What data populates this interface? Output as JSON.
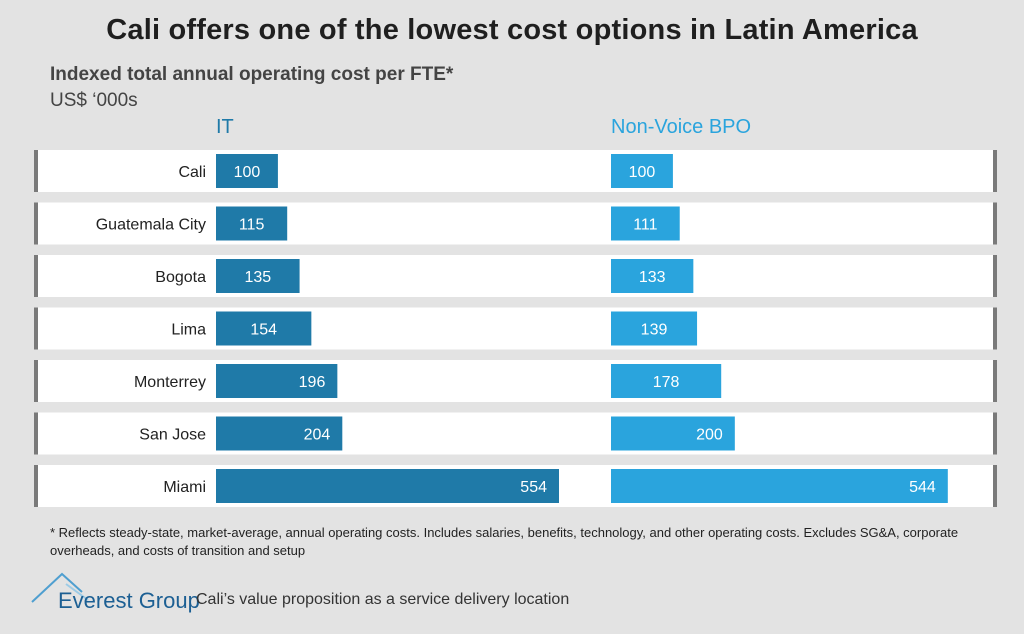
{
  "title": "Cali offers one of the lowest cost options in Latin America",
  "chart_data": {
    "type": "bar",
    "orientation": "horizontal",
    "title": "Indexed total annual operating cost per FTE*",
    "unit_label": "US$ ‘000s",
    "categories": [
      "Cali",
      "Guatemala City",
      "Bogota",
      "Lima",
      "Monterrey",
      "San Jose",
      "Miami"
    ],
    "series": [
      {
        "name": "IT",
        "color": "#1f7aa8",
        "values": [
          100,
          115,
          135,
          154,
          196,
          204,
          554
        ]
      },
      {
        "name": "Non-Voice BPO",
        "color": "#2aa4dd",
        "values": [
          100,
          111,
          133,
          139,
          178,
          200,
          544
        ]
      }
    ],
    "xlim": [
      0,
      560
    ]
  },
  "footnote": "* Reflects steady-state, market-average, annual operating costs. Includes salaries, benefits, technology, and other operating costs. Excludes SG&A, corporate overheads, and costs of transition and setup",
  "footer": {
    "logo_text": "Everest Group",
    "caption": "Cali’s value proposition as a service delivery location"
  },
  "colors": {
    "title": "#1f1f1f",
    "logo": "#1c5f93",
    "background": "#e3e3e3"
  }
}
